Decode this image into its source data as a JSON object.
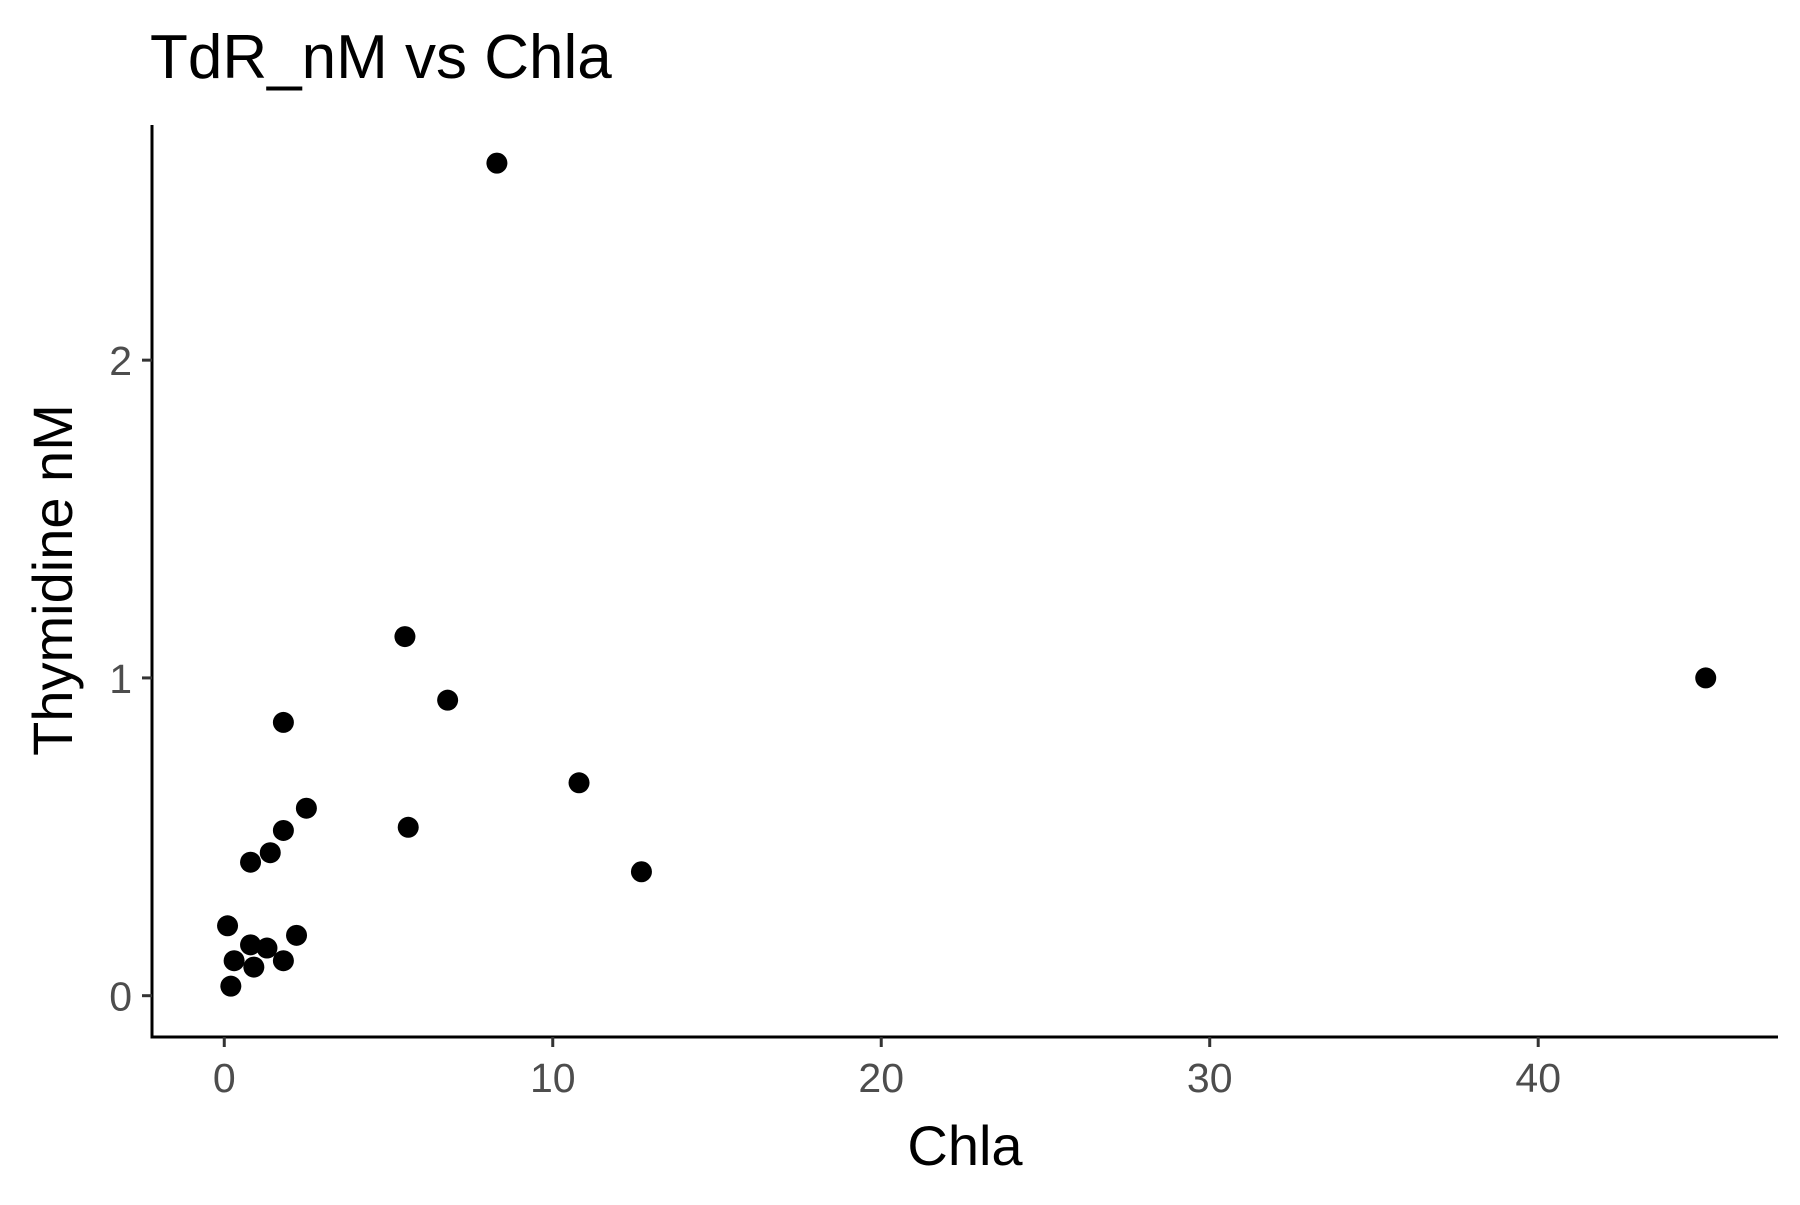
{
  "chart_data": {
    "type": "scatter",
    "title": "TdR_nM vs Chla",
    "xlabel": "Chla",
    "ylabel": "Thymidine nM",
    "xlim": [
      -2.2,
      47.3
    ],
    "ylim": [
      -0.13,
      2.74
    ],
    "x_ticks": [
      0,
      10,
      20,
      30,
      40
    ],
    "y_ticks": [
      0,
      1,
      2
    ],
    "x_tick_labels": [
      "0",
      "10",
      "20",
      "30",
      "40"
    ],
    "y_tick_labels": [
      "0",
      "1",
      "2"
    ],
    "grid": false,
    "legend": "none",
    "point_color": "#000000",
    "axis_color": "#000000",
    "series": [
      {
        "points": [
          {
            "x": 8.3,
            "y": 2.62
          },
          {
            "x": 5.5,
            "y": 1.13
          },
          {
            "x": 6.8,
            "y": 0.93
          },
          {
            "x": 1.8,
            "y": 0.86
          },
          {
            "x": 45.1,
            "y": 1.0
          },
          {
            "x": 10.8,
            "y": 0.67
          },
          {
            "x": 2.5,
            "y": 0.59
          },
          {
            "x": 5.6,
            "y": 0.53
          },
          {
            "x": 1.8,
            "y": 0.52
          },
          {
            "x": 1.4,
            "y": 0.45
          },
          {
            "x": 0.8,
            "y": 0.42
          },
          {
            "x": 12.7,
            "y": 0.39
          },
          {
            "x": 0.1,
            "y": 0.22
          },
          {
            "x": 2.2,
            "y": 0.19
          },
          {
            "x": 0.8,
            "y": 0.16
          },
          {
            "x": 1.3,
            "y": 0.15
          },
          {
            "x": 0.3,
            "y": 0.11
          },
          {
            "x": 1.8,
            "y": 0.11
          },
          {
            "x": 0.9,
            "y": 0.09
          },
          {
            "x": 0.2,
            "y": 0.03
          }
        ]
      }
    ]
  }
}
